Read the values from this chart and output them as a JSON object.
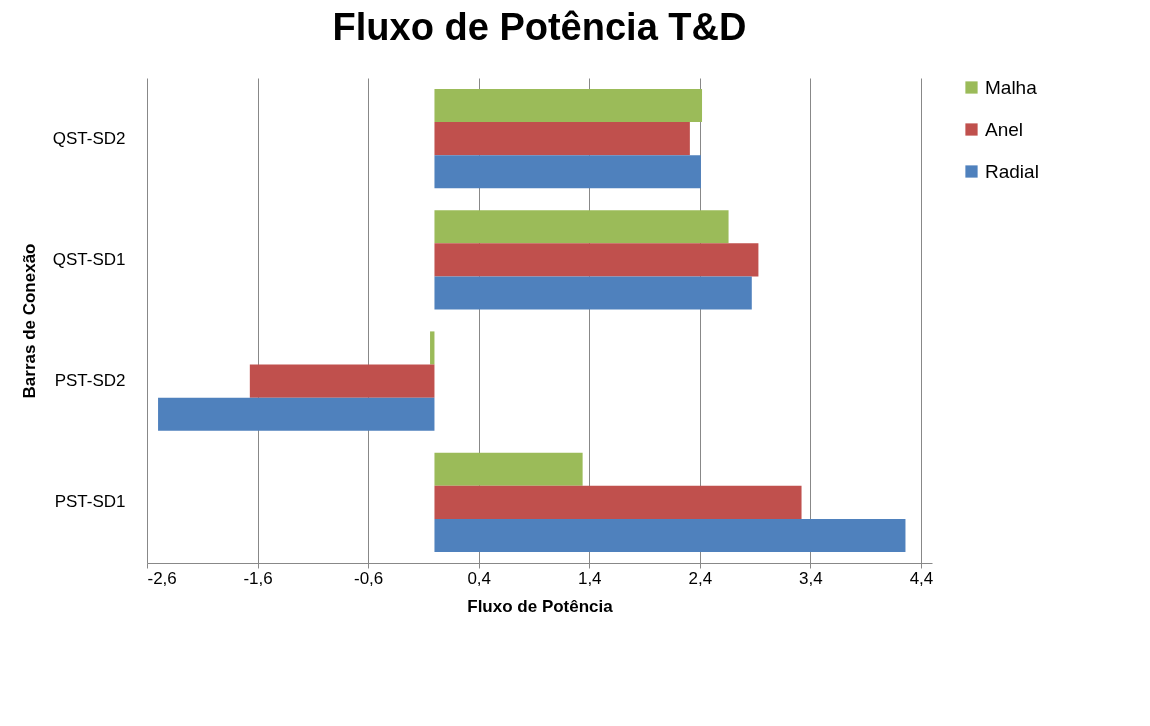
{
  "chart_data": {
    "type": "bar",
    "orientation": "horizontal",
    "title": "Fluxo de Potência T&D",
    "xlabel": "Fluxo de Potência",
    "ylabel": "Barras de Conexão",
    "categories": [
      "QST-SD2",
      "QST-SD1",
      "PST-SD2",
      "PST-SD1"
    ],
    "series": [
      {
        "name": "Malha",
        "color": "#9bbb59",
        "values": [
          2.42,
          2.66,
          -0.04,
          1.34
        ]
      },
      {
        "name": "Anel",
        "color": "#c0504d",
        "values": [
          2.31,
          2.93,
          -1.67,
          3.32
        ]
      },
      {
        "name": "Radial",
        "color": "#4f81bd",
        "values": [
          2.41,
          2.87,
          -2.5,
          4.26
        ]
      }
    ],
    "xlim": [
      -2.6,
      4.5
    ],
    "xticks": [
      {
        "value": -2.6,
        "label": "-2,6"
      },
      {
        "value": -1.6,
        "label": "-1,6"
      },
      {
        "value": -0.6,
        "label": "-0,6"
      },
      {
        "value": 0.4,
        "label": "0,4"
      },
      {
        "value": 1.4,
        "label": "1,4"
      },
      {
        "value": 2.4,
        "label": "2,4"
      },
      {
        "value": 3.4,
        "label": "3,4"
      },
      {
        "value": 4.4,
        "label": "4,4"
      }
    ],
    "grid": "x",
    "legend": "right"
  }
}
